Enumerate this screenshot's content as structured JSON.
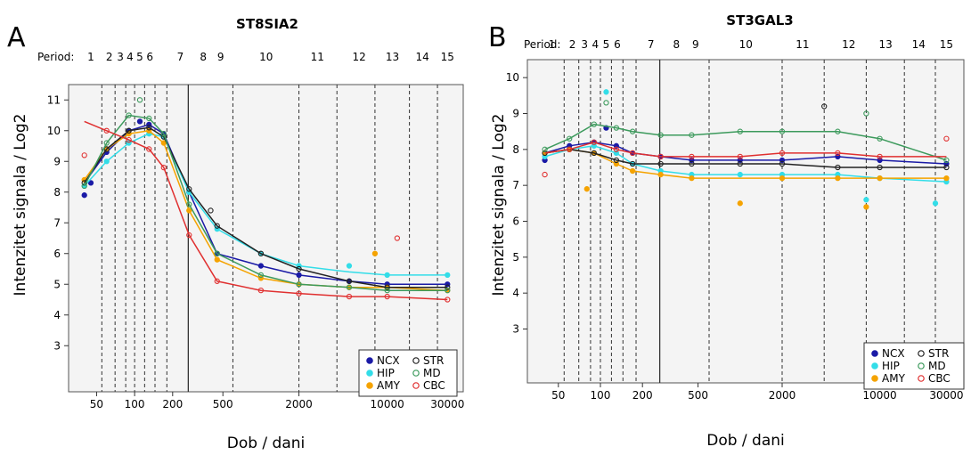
{
  "chart_data": [
    {
      "type": "scatter",
      "panel_letter": "A",
      "title": "ST8SIA2",
      "xlabel": "Dob / dani",
      "ylabel": "Intenzitet signala / Log2",
      "period_label": "Period:",
      "x_scale": "log",
      "xlim": [
        30,
        40000
      ],
      "ylim": [
        1.5,
        11.5
      ],
      "xticks": [
        50,
        100,
        200,
        500,
        2000,
        10000,
        30000
      ],
      "xtick_labels": [
        "50",
        "100",
        "200",
        "500",
        "2000",
        "10000",
        "30000"
      ],
      "yticks": [
        3,
        4,
        5,
        6,
        7,
        8,
        9,
        10,
        11
      ],
      "ytick_labels": [
        "3",
        "4",
        "5",
        "6",
        "7",
        "8",
        "9",
        "10",
        "11"
      ],
      "period_boundaries": [
        55,
        70,
        85,
        100,
        120,
        145,
        180,
        600,
        2000,
        4000,
        8000,
        15000,
        25000
      ],
      "birth_line": 266,
      "periods": [
        {
          "label": "1",
          "x": 45
        },
        {
          "label": "2",
          "x": 63
        },
        {
          "label": "3",
          "x": 77
        },
        {
          "label": "4",
          "x": 92
        },
        {
          "label": "5",
          "x": 110
        },
        {
          "label": "6",
          "x": 132
        },
        {
          "label": "7",
          "x": 230
        },
        {
          "label": "8",
          "x": 350
        },
        {
          "label": "9",
          "x": 480
        },
        {
          "label": "10",
          "x": 1100
        },
        {
          "label": "11",
          "x": 2800
        },
        {
          "label": "12",
          "x": 6000
        },
        {
          "label": "13",
          "x": 11000
        },
        {
          "label": "14",
          "x": 19000
        },
        {
          "label": "15",
          "x": 30000
        }
      ],
      "legend_position": "bottom-right",
      "series": [
        {
          "name": "NCX",
          "color": "#1a1aa6",
          "filled": true,
          "curve_x": [
            40,
            60,
            90,
            130,
            170,
            270,
            450,
            1000,
            2000,
            5000,
            10000,
            30000
          ],
          "curve_y": [
            8.3,
            9.3,
            10.0,
            10.2,
            9.9,
            8.0,
            6.0,
            5.6,
            5.3,
            5.1,
            5.0,
            5.0
          ],
          "points_x": [
            40,
            45,
            60,
            90,
            110,
            130,
            170,
            270,
            450,
            1000,
            2000,
            5000,
            10000,
            30000
          ],
          "points_y": [
            7.9,
            8.3,
            9.3,
            10.0,
            10.3,
            10.2,
            9.9,
            8.0,
            6.0,
            5.6,
            5.3,
            5.1,
            5.0,
            5.0
          ]
        },
        {
          "name": "HIP",
          "color": "#33dde8",
          "filled": true,
          "curve_x": [
            40,
            60,
            90,
            130,
            170,
            270,
            450,
            1000,
            2000,
            5000,
            10000,
            30000
          ],
          "curve_y": [
            8.2,
            9.0,
            9.6,
            9.9,
            9.8,
            8.0,
            6.8,
            6.0,
            5.6,
            5.4,
            5.3,
            5.3
          ],
          "points_x": [
            40,
            60,
            90,
            130,
            170,
            270,
            450,
            1000,
            2000,
            5000,
            10000,
            30000
          ],
          "points_y": [
            8.2,
            9.0,
            9.6,
            9.9,
            9.8,
            8.0,
            6.8,
            6.0,
            5.6,
            5.6,
            5.3,
            5.3
          ]
        },
        {
          "name": "AMY",
          "color": "#f5a300",
          "filled": true,
          "curve_x": [
            40,
            60,
            90,
            130,
            170,
            270,
            450,
            1000,
            2000,
            5000,
            10000,
            30000
          ],
          "curve_y": [
            8.4,
            9.4,
            9.9,
            10.0,
            9.6,
            7.4,
            5.8,
            5.2,
            5.0,
            4.9,
            4.9,
            4.8
          ],
          "points_x": [
            40,
            60,
            90,
            130,
            170,
            270,
            450,
            1000,
            2000,
            5000,
            8000,
            10000,
            30000
          ],
          "points_y": [
            8.4,
            9.4,
            9.9,
            10.0,
            9.6,
            7.4,
            5.8,
            5.2,
            5.0,
            4.9,
            6.0,
            4.9,
            4.8
          ]
        },
        {
          "name": "STR",
          "color": "#222222",
          "filled": false,
          "curve_x": [
            40,
            60,
            90,
            130,
            170,
            270,
            450,
            1000,
            2000,
            5000,
            10000,
            30000
          ],
          "curve_y": [
            8.3,
            9.4,
            10.0,
            10.1,
            9.8,
            8.1,
            6.9,
            6.0,
            5.5,
            5.1,
            4.9,
            4.9
          ],
          "points_x": [
            40,
            60,
            90,
            130,
            170,
            270,
            400,
            450,
            1000,
            2000,
            5000,
            10000,
            30000
          ],
          "points_y": [
            8.3,
            9.4,
            10.0,
            10.1,
            9.8,
            8.1,
            7.4,
            6.9,
            6.0,
            5.5,
            5.1,
            4.9,
            4.9
          ]
        },
        {
          "name": "MD",
          "color": "#3c9a5c",
          "filled": false,
          "curve_x": [
            40,
            60,
            90,
            130,
            170,
            270,
            450,
            1000,
            2000,
            5000,
            10000,
            30000
          ],
          "curve_y": [
            8.2,
            9.6,
            10.5,
            10.4,
            9.9,
            7.6,
            6.0,
            5.3,
            5.0,
            4.9,
            4.8,
            4.8
          ],
          "points_x": [
            40,
            60,
            90,
            110,
            130,
            170,
            270,
            450,
            1000,
            2000,
            5000,
            10000,
            30000
          ],
          "points_y": [
            8.2,
            9.6,
            10.5,
            11.0,
            10.4,
            9.9,
            7.6,
            6.0,
            5.3,
            5.0,
            4.9,
            4.8,
            4.8
          ]
        },
        {
          "name": "CBC",
          "color": "#e03030",
          "filled": false,
          "curve_x": [
            40,
            60,
            90,
            130,
            170,
            270,
            450,
            1000,
            2000,
            5000,
            10000,
            30000
          ],
          "curve_y": [
            10.3,
            10.0,
            9.7,
            9.4,
            8.8,
            6.6,
            5.1,
            4.8,
            4.7,
            4.6,
            4.6,
            4.5
          ],
          "points_x": [
            40,
            60,
            90,
            130,
            170,
            270,
            450,
            1000,
            2000,
            5000,
            10000,
            12000,
            30000
          ],
          "points_y": [
            9.2,
            10.0,
            9.7,
            9.4,
            8.8,
            6.6,
            5.1,
            4.8,
            4.7,
            4.6,
            4.6,
            6.5,
            4.5
          ]
        }
      ]
    },
    {
      "type": "scatter",
      "panel_letter": "B",
      "title": "ST3GAL3",
      "xlabel": "Dob / dani",
      "ylabel": "Intenzitet signala / Log2",
      "period_label": "Period:",
      "x_scale": "log",
      "xlim": [
        30,
        40000
      ],
      "ylim": [
        1.5,
        10.5
      ],
      "xticks": [
        50,
        100,
        200,
        500,
        2000,
        10000,
        30000
      ],
      "xtick_labels": [
        "50",
        "100",
        "200",
        "500",
        "2000",
        "10000",
        "30000"
      ],
      "yticks": [
        3,
        4,
        5,
        6,
        7,
        8,
        9,
        10
      ],
      "ytick_labels": [
        "3",
        "4",
        "5",
        "6",
        "7",
        "8",
        "9",
        "10"
      ],
      "period_boundaries": [
        55,
        70,
        85,
        100,
        120,
        145,
        180,
        600,
        2000,
        4000,
        8000,
        15000,
        25000
      ],
      "birth_line": 266,
      "periods": [
        {
          "label": "1",
          "x": 45
        },
        {
          "label": "2",
          "x": 63
        },
        {
          "label": "3",
          "x": 77
        },
        {
          "label": "4",
          "x": 92
        },
        {
          "label": "5",
          "x": 110
        },
        {
          "label": "6",
          "x": 132
        },
        {
          "label": "7",
          "x": 230
        },
        {
          "label": "8",
          "x": 350
        },
        {
          "label": "9",
          "x": 480
        },
        {
          "label": "10",
          "x": 1100
        },
        {
          "label": "11",
          "x": 2800
        },
        {
          "label": "12",
          "x": 6000
        },
        {
          "label": "13",
          "x": 11000
        },
        {
          "label": "14",
          "x": 19000
        },
        {
          "label": "15",
          "x": 30000
        }
      ],
      "legend_position": "bottom-right",
      "series": [
        {
          "name": "NCX",
          "color": "#1a1aa6",
          "filled": true,
          "curve_x": [
            40,
            60,
            90,
            130,
            170,
            270,
            450,
            1000,
            2000,
            5000,
            10000,
            30000
          ],
          "curve_y": [
            7.9,
            8.1,
            8.2,
            8.1,
            7.9,
            7.8,
            7.7,
            7.7,
            7.7,
            7.8,
            7.7,
            7.6
          ],
          "points_x": [
            40,
            60,
            90,
            110,
            130,
            170,
            270,
            450,
            1000,
            2000,
            5000,
            10000,
            30000
          ],
          "points_y": [
            7.7,
            8.1,
            8.2,
            8.6,
            8.1,
            7.9,
            7.8,
            7.7,
            7.7,
            7.7,
            7.8,
            7.7,
            7.6
          ]
        },
        {
          "name": "HIP",
          "color": "#33dde8",
          "filled": true,
          "curve_x": [
            40,
            60,
            90,
            130,
            170,
            270,
            450,
            1000,
            2000,
            5000,
            10000,
            30000
          ],
          "curve_y": [
            7.8,
            8.0,
            8.1,
            7.9,
            7.6,
            7.4,
            7.3,
            7.3,
            7.3,
            7.3,
            7.2,
            7.1
          ],
          "points_x": [
            40,
            60,
            90,
            110,
            130,
            170,
            270,
            450,
            1000,
            2000,
            5000,
            8000,
            10000,
            25000,
            30000
          ],
          "points_y": [
            7.8,
            8.0,
            8.1,
            9.6,
            7.9,
            7.6,
            7.4,
            7.3,
            7.3,
            7.3,
            7.3,
            6.6,
            7.2,
            6.5,
            7.1
          ]
        },
        {
          "name": "AMY",
          "color": "#f5a300",
          "filled": true,
          "curve_x": [
            40,
            60,
            90,
            130,
            170,
            270,
            450,
            1000,
            2000,
            5000,
            10000,
            30000
          ],
          "curve_y": [
            7.9,
            8.0,
            7.9,
            7.6,
            7.4,
            7.3,
            7.2,
            7.2,
            7.2,
            7.2,
            7.2,
            7.2
          ],
          "points_x": [
            40,
            60,
            80,
            90,
            130,
            170,
            270,
            450,
            1000,
            2000,
            5000,
            8000,
            10000,
            30000
          ],
          "points_y": [
            7.9,
            8.0,
            6.9,
            7.9,
            7.6,
            7.4,
            7.3,
            7.2,
            6.5,
            7.2,
            7.2,
            6.4,
            7.2,
            7.2
          ]
        },
        {
          "name": "STR",
          "color": "#222222",
          "filled": false,
          "curve_x": [
            40,
            60,
            90,
            130,
            170,
            270,
            450,
            1000,
            2000,
            5000,
            10000,
            30000
          ],
          "curve_y": [
            7.9,
            8.0,
            7.9,
            7.7,
            7.6,
            7.6,
            7.6,
            7.6,
            7.6,
            7.5,
            7.5,
            7.5
          ],
          "points_x": [
            40,
            60,
            90,
            130,
            170,
            270,
            450,
            1000,
            2000,
            4000,
            5000,
            10000,
            30000
          ],
          "points_y": [
            7.9,
            8.0,
            7.9,
            7.7,
            7.6,
            7.6,
            7.6,
            7.6,
            7.6,
            9.2,
            7.5,
            7.5,
            7.5
          ]
        },
        {
          "name": "MD",
          "color": "#3c9a5c",
          "filled": false,
          "curve_x": [
            40,
            60,
            90,
            130,
            170,
            270,
            450,
            1000,
            2000,
            5000,
            10000,
            30000
          ],
          "curve_y": [
            8.0,
            8.3,
            8.7,
            8.6,
            8.5,
            8.4,
            8.4,
            8.5,
            8.5,
            8.5,
            8.3,
            7.7
          ],
          "points_x": [
            40,
            60,
            90,
            110,
            130,
            170,
            270,
            450,
            1000,
            2000,
            5000,
            8000,
            10000,
            30000
          ],
          "points_y": [
            8.0,
            8.3,
            8.7,
            9.3,
            8.6,
            8.5,
            8.4,
            8.4,
            8.5,
            8.5,
            8.5,
            9.0,
            8.3,
            7.7
          ]
        },
        {
          "name": "CBC",
          "color": "#e03030",
          "filled": false,
          "curve_x": [
            40,
            60,
            90,
            130,
            170,
            270,
            450,
            1000,
            2000,
            5000,
            10000,
            30000
          ],
          "curve_y": [
            7.9,
            8.0,
            8.2,
            8.0,
            7.9,
            7.8,
            7.8,
            7.8,
            7.9,
            7.9,
            7.8,
            7.8
          ],
          "points_x": [
            40,
            60,
            90,
            130,
            170,
            270,
            450,
            1000,
            2000,
            5000,
            10000,
            30000
          ],
          "points_y": [
            7.3,
            8.0,
            8.2,
            8.0,
            7.9,
            7.8,
            7.8,
            7.8,
            7.9,
            7.9,
            7.8,
            8.3
          ]
        }
      ]
    }
  ]
}
